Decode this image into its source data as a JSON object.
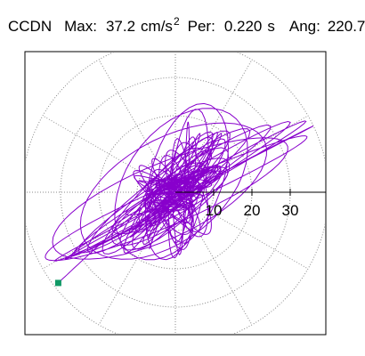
{
  "header": {
    "station": "CCDN",
    "max_label": "Max:",
    "max_value": "37.2",
    "max_units": "cm/s",
    "max_units_exp": "2",
    "period_label": "Per:",
    "period_value": "0.220",
    "period_units": "s",
    "angle_label": "Ang:",
    "angle_value": "220.7"
  },
  "colors": {
    "trace": "#8800cc",
    "marker": "#119966",
    "grid": "#888888",
    "axis": "#000000",
    "frame": "#000000",
    "background": "#ffffff"
  },
  "chart_data": {
    "type": "scatter",
    "subtype": "polar particle-motion hodogram",
    "title": "",
    "radial_ticks": [
      "10",
      "20",
      "30"
    ],
    "radial_tick_values": [
      10,
      20,
      30
    ],
    "angular_spokes_deg": [
      0,
      30,
      60,
      90,
      120,
      150,
      180,
      210,
      240,
      270,
      300,
      330
    ],
    "max_amplitude": 37.2,
    "max_units": "cm/s^2",
    "peak_angle_deg": 220.7,
    "trace_description": "dense irregular orbits elongated along the NE–SW diagonal",
    "trace_extent": {
      "major_axis_deg": 35,
      "major_half_length": 33,
      "minor_half_length": 14
    },
    "end_marker": {
      "x": -30.6,
      "y": -23.7
    },
    "grid": true,
    "legend": "none"
  }
}
